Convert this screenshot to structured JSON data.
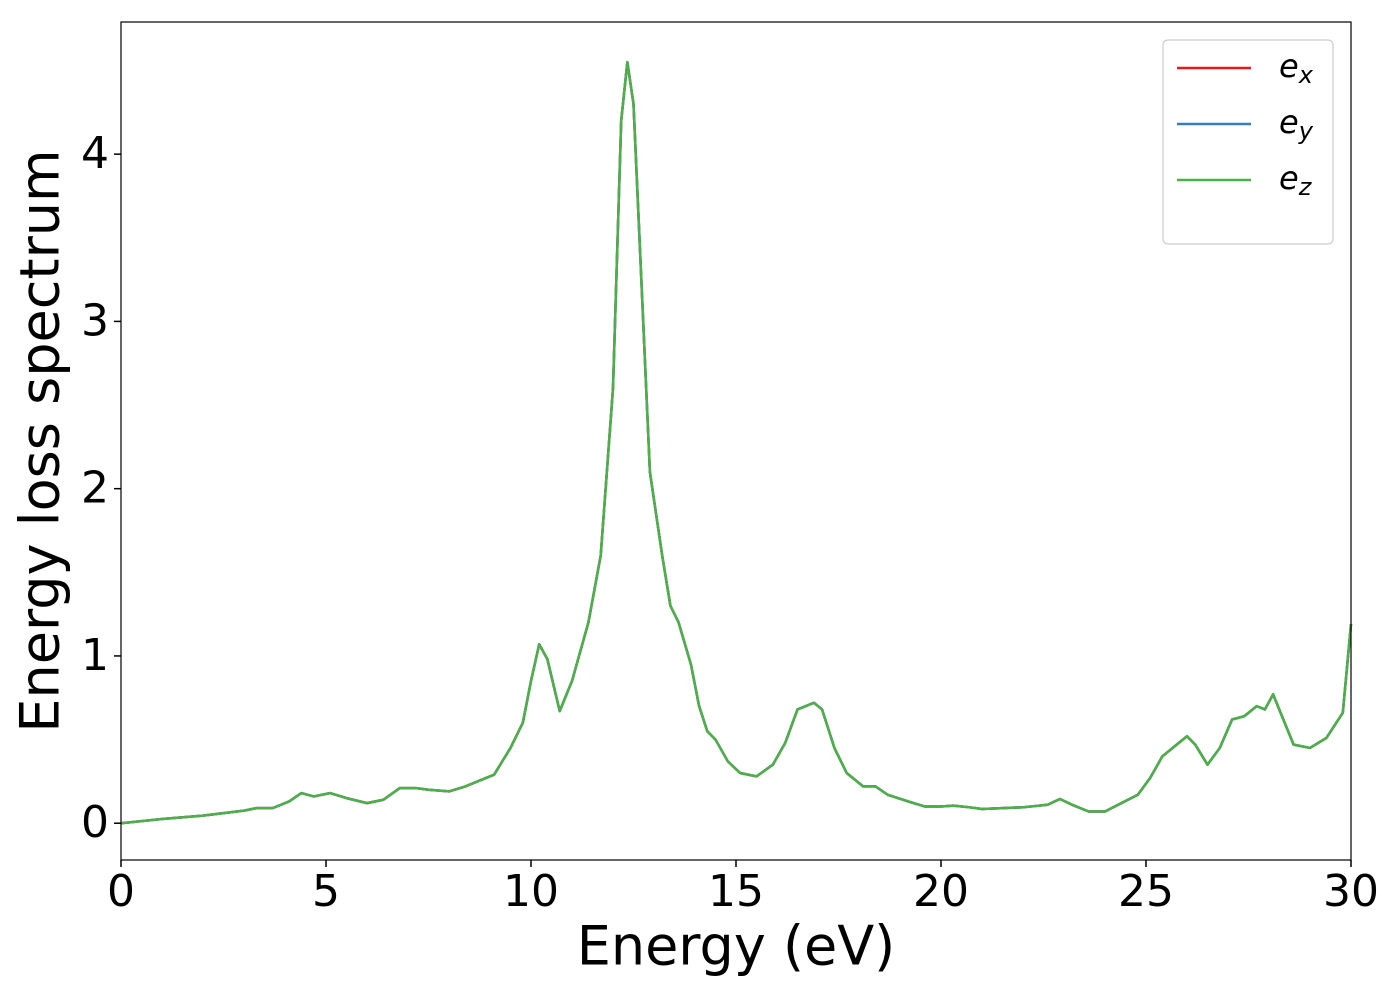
{
  "chart_data": {
    "type": "line",
    "xlabel": "Energy (eV)",
    "ylabel": "Energy loss spectrum",
    "xlim": [
      0,
      30
    ],
    "ylim": [
      -0.22,
      4.79
    ],
    "xticks": [
      0,
      5,
      10,
      15,
      20,
      25,
      30
    ],
    "yticks": [
      0,
      1,
      2,
      3,
      4
    ],
    "legend": "upper right",
    "x": [
      0,
      1,
      2,
      2.5,
      3,
      3.3,
      3.7,
      4.1,
      4.4,
      4.7,
      5.1,
      5.5,
      6.0,
      6.4,
      6.8,
      7.2,
      7.5,
      8.0,
      8.4,
      8.8,
      9.1,
      9.5,
      9.8,
      10.0,
      10.2,
      10.4,
      10.7,
      11.0,
      11.4,
      11.7,
      12.0,
      12.2,
      12.35,
      12.5,
      12.7,
      12.9,
      13.2,
      13.4,
      13.6,
      13.9,
      14.1,
      14.3,
      14.5,
      14.8,
      15.1,
      15.5,
      15.9,
      16.2,
      16.5,
      16.9,
      17.1,
      17.4,
      17.7,
      18.1,
      18.4,
      18.7,
      19.2,
      19.6,
      20.0,
      20.3,
      20.7,
      21.0,
      21.5,
      22.0,
      22.6,
      22.9,
      23.2,
      23.6,
      24.0,
      24.4,
      24.8,
      25.1,
      25.4,
      25.7,
      26.0,
      26.2,
      26.5,
      26.8,
      27.1,
      27.4,
      27.7,
      27.9,
      28.1,
      28.3,
      28.6,
      29.0,
      29.4,
      29.8,
      30.0
    ],
    "series": [
      {
        "name": "e_x",
        "color": "#e41a1c",
        "values": [
          0.0,
          0.025,
          0.045,
          0.06,
          0.075,
          0.09,
          0.09,
          0.13,
          0.18,
          0.16,
          0.18,
          0.15,
          0.12,
          0.14,
          0.21,
          0.21,
          0.2,
          0.19,
          0.22,
          0.26,
          0.29,
          0.45,
          0.6,
          0.85,
          1.07,
          0.98,
          0.67,
          0.85,
          1.2,
          1.6,
          2.6,
          4.2,
          4.55,
          4.3,
          3.2,
          2.1,
          1.6,
          1.3,
          1.2,
          0.95,
          0.7,
          0.55,
          0.5,
          0.37,
          0.3,
          0.28,
          0.35,
          0.48,
          0.68,
          0.72,
          0.68,
          0.45,
          0.3,
          0.22,
          0.22,
          0.17,
          0.13,
          0.1,
          0.1,
          0.105,
          0.095,
          0.085,
          0.09,
          0.095,
          0.11,
          0.145,
          0.11,
          0.07,
          0.07,
          0.12,
          0.17,
          0.27,
          0.4,
          0.46,
          0.52,
          0.47,
          0.35,
          0.45,
          0.62,
          0.64,
          0.7,
          0.68,
          0.77,
          0.65,
          0.47,
          0.45,
          0.51,
          0.66,
          1.19
        ]
      },
      {
        "name": "e_y",
        "color": "#377eb8",
        "values": [
          0.0,
          0.025,
          0.045,
          0.06,
          0.075,
          0.09,
          0.09,
          0.13,
          0.18,
          0.16,
          0.18,
          0.15,
          0.12,
          0.14,
          0.21,
          0.21,
          0.2,
          0.19,
          0.22,
          0.26,
          0.29,
          0.45,
          0.6,
          0.85,
          1.07,
          0.98,
          0.67,
          0.85,
          1.2,
          1.6,
          2.6,
          4.2,
          4.55,
          4.3,
          3.2,
          2.1,
          1.6,
          1.3,
          1.2,
          0.95,
          0.7,
          0.55,
          0.5,
          0.37,
          0.3,
          0.28,
          0.35,
          0.48,
          0.68,
          0.72,
          0.68,
          0.45,
          0.3,
          0.22,
          0.22,
          0.17,
          0.13,
          0.1,
          0.1,
          0.105,
          0.095,
          0.085,
          0.09,
          0.095,
          0.11,
          0.145,
          0.11,
          0.07,
          0.07,
          0.12,
          0.17,
          0.27,
          0.4,
          0.46,
          0.52,
          0.47,
          0.35,
          0.45,
          0.62,
          0.64,
          0.7,
          0.68,
          0.77,
          0.65,
          0.47,
          0.45,
          0.51,
          0.66,
          1.19
        ]
      },
      {
        "name": "e_z",
        "color": "#4daf4a",
        "values": [
          0.0,
          0.025,
          0.045,
          0.06,
          0.075,
          0.09,
          0.09,
          0.13,
          0.18,
          0.16,
          0.18,
          0.15,
          0.12,
          0.14,
          0.21,
          0.21,
          0.2,
          0.19,
          0.22,
          0.26,
          0.29,
          0.45,
          0.6,
          0.85,
          1.07,
          0.98,
          0.67,
          0.85,
          1.2,
          1.6,
          2.6,
          4.2,
          4.55,
          4.3,
          3.2,
          2.1,
          1.6,
          1.3,
          1.2,
          0.95,
          0.7,
          0.55,
          0.5,
          0.37,
          0.3,
          0.28,
          0.35,
          0.48,
          0.68,
          0.72,
          0.68,
          0.45,
          0.3,
          0.22,
          0.22,
          0.17,
          0.13,
          0.1,
          0.1,
          0.105,
          0.095,
          0.085,
          0.09,
          0.095,
          0.11,
          0.145,
          0.11,
          0.07,
          0.07,
          0.12,
          0.17,
          0.27,
          0.4,
          0.46,
          0.52,
          0.47,
          0.35,
          0.45,
          0.62,
          0.64,
          0.7,
          0.68,
          0.77,
          0.65,
          0.47,
          0.45,
          0.51,
          0.66,
          1.19
        ]
      }
    ]
  }
}
